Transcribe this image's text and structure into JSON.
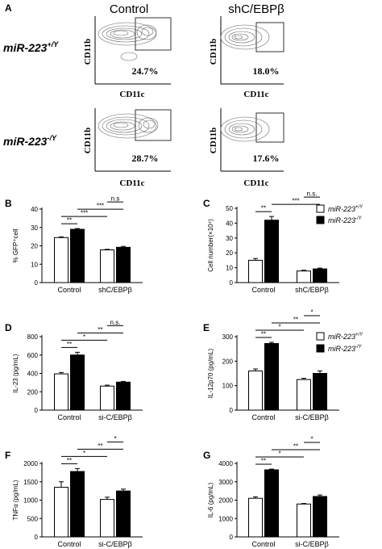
{
  "panel_a": {
    "label": "A",
    "columns": [
      "Control",
      "shC/EBPβ"
    ],
    "row_labels": [
      {
        "base": "miR-223",
        "sup": "+/Y"
      },
      {
        "base": "miR-223",
        "sup": "-/Y"
      }
    ],
    "y_axis_label": "CD11b",
    "x_axis_label": "CD11c",
    "percentages": [
      "24.7%",
      "18.0%",
      "28.7%",
      "17.6%"
    ]
  },
  "legend": {
    "items": [
      {
        "base": "miR-223",
        "sup": "+/Y",
        "fill": "#ffffff"
      },
      {
        "base": "miR-223",
        "sup": "-/Y",
        "fill": "#000000"
      }
    ]
  },
  "colors": {
    "wt": "#ffffff",
    "ko": "#000000",
    "stroke": "#000000"
  },
  "chart_data": [
    {
      "panel": "B",
      "type": "bar",
      "categories": [
        "Control",
        "shC/EBPβ"
      ],
      "ylabel": "% GFP⁺cell",
      "ylim": [
        0,
        40
      ],
      "yticks": [
        0,
        10,
        20,
        30,
        40
      ],
      "series": [
        {
          "values": [
            24.5,
            17.8
          ],
          "errors": [
            0.4,
            0.3
          ]
        },
        {
          "values": [
            29.0,
            19.2
          ],
          "errors": [
            0.4,
            0.5
          ]
        }
      ],
      "brackets": [
        {
          "label": "**",
          "from": [
            0,
            0
          ],
          "to": [
            0,
            1
          ]
        },
        {
          "label": "***",
          "from": [
            0,
            0
          ],
          "to": [
            1,
            0
          ]
        },
        {
          "label": "***",
          "from": [
            0,
            1
          ],
          "to": [
            1,
            1
          ]
        },
        {
          "label": "n.s",
          "from": [
            1,
            0
          ],
          "to": [
            1,
            1
          ]
        }
      ]
    },
    {
      "panel": "C",
      "type": "bar",
      "categories": [
        "Control",
        "shC/EBPβ"
      ],
      "ylabel": "Cell number(×10⁴)",
      "ylim": [
        0,
        50
      ],
      "yticks": [
        0,
        10,
        20,
        30,
        40,
        50
      ],
      "series": [
        {
          "values": [
            15.0,
            7.8
          ],
          "errors": [
            1.2,
            0.5
          ]
        },
        {
          "values": [
            42.0,
            9.2
          ],
          "errors": [
            2.5,
            0.5
          ]
        }
      ],
      "brackets": [
        {
          "label": "**",
          "from": [
            0,
            0
          ],
          "to": [
            0,
            1
          ]
        },
        {
          "label": "***",
          "from": [
            0,
            1
          ],
          "to": [
            1,
            1
          ]
        },
        {
          "label": "n.s.",
          "from": [
            1,
            0
          ],
          "to": [
            1,
            1
          ]
        }
      ]
    },
    {
      "panel": "D",
      "type": "bar",
      "categories": [
        "Control",
        "si-C/EBPβ"
      ],
      "ylabel": "IL-23 (pg/mL)",
      "ylim": [
        0,
        800
      ],
      "yticks": [
        0,
        200,
        400,
        600,
        800
      ],
      "series": [
        {
          "values": [
            395,
            262
          ],
          "errors": [
            15,
            10
          ]
        },
        {
          "values": [
            600,
            305
          ],
          "errors": [
            30,
            8
          ]
        }
      ],
      "brackets": [
        {
          "label": "**",
          "from": [
            0,
            0
          ],
          "to": [
            0,
            1
          ]
        },
        {
          "label": "*",
          "from": [
            0,
            0
          ],
          "to": [
            1,
            0
          ]
        },
        {
          "label": "**",
          "from": [
            0,
            1
          ],
          "to": [
            1,
            1
          ]
        },
        {
          "label": "n.s.",
          "from": [
            1,
            0
          ],
          "to": [
            1,
            1
          ]
        }
      ]
    },
    {
      "panel": "E",
      "type": "bar",
      "categories": [
        "Control",
        "si-C/EBPβ"
      ],
      "ylabel": "IL-12p70 (pg/mL)",
      "ylim": [
        0,
        300
      ],
      "yticks": [
        0,
        100,
        200,
        300
      ],
      "series": [
        {
          "values": [
            160,
            125
          ],
          "errors": [
            8,
            5
          ]
        },
        {
          "values": [
            272,
            150
          ],
          "errors": [
            5,
            10
          ]
        }
      ],
      "brackets": [
        {
          "label": "**",
          "from": [
            0,
            0
          ],
          "to": [
            0,
            1
          ]
        },
        {
          "label": "*",
          "from": [
            0,
            0
          ],
          "to": [
            1,
            0
          ]
        },
        {
          "label": "**",
          "from": [
            0,
            1
          ],
          "to": [
            1,
            1
          ]
        },
        {
          "label": "*",
          "from": [
            1,
            0
          ],
          "to": [
            1,
            1
          ]
        }
      ]
    },
    {
      "panel": "F",
      "type": "bar",
      "categories": [
        "Control",
        "si-C/EBPβ"
      ],
      "ylabel": "TNFα (pg/mL)",
      "ylim": [
        0,
        2000
      ],
      "yticks": [
        0,
        500,
        1000,
        1500,
        2000
      ],
      "series": [
        {
          "values": [
            1350,
            1020
          ],
          "errors": [
            150,
            60
          ]
        },
        {
          "values": [
            1780,
            1250
          ],
          "errors": [
            80,
            50
          ]
        }
      ],
      "brackets": [
        {
          "label": "**",
          "from": [
            0,
            0
          ],
          "to": [
            0,
            1
          ]
        },
        {
          "label": "*",
          "from": [
            0,
            0
          ],
          "to": [
            1,
            0
          ]
        },
        {
          "label": "**",
          "from": [
            0,
            1
          ],
          "to": [
            1,
            1
          ]
        },
        {
          "label": "*",
          "from": [
            1,
            0
          ],
          "to": [
            1,
            1
          ]
        }
      ]
    },
    {
      "panel": "G",
      "type": "bar",
      "categories": [
        "Control",
        "si-C/EBPβ"
      ],
      "ylabel": "IL-6 (pg/mL)",
      "ylim": [
        0,
        4000
      ],
      "yticks": [
        0,
        1000,
        2000,
        3000,
        4000
      ],
      "series": [
        {
          "values": [
            2100,
            1790
          ],
          "errors": [
            80,
            30
          ]
        },
        {
          "values": [
            3650,
            2200
          ],
          "errors": [
            40,
            80
          ]
        }
      ],
      "brackets": [
        {
          "label": "**",
          "from": [
            0,
            0
          ],
          "to": [
            0,
            1
          ]
        },
        {
          "label": "*",
          "from": [
            0,
            0
          ],
          "to": [
            1,
            0
          ]
        },
        {
          "label": "**",
          "from": [
            0,
            1
          ],
          "to": [
            1,
            1
          ]
        },
        {
          "label": "*",
          "from": [
            1,
            0
          ],
          "to": [
            1,
            1
          ]
        }
      ]
    }
  ]
}
